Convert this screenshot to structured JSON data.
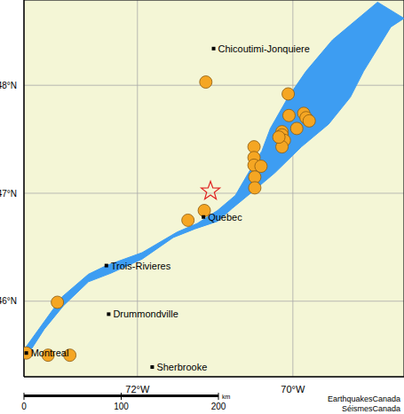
{
  "chart_data": {
    "type": "map",
    "xlim": [
      -73.46,
      -68.57
    ],
    "ylim": [
      45.3,
      48.79
    ],
    "xticks": [
      {
        "value": -72,
        "label": "72°W"
      },
      {
        "value": -70,
        "label": "70°W"
      }
    ],
    "yticks": [
      {
        "value": 46,
        "label": "46°N"
      },
      {
        "value": 47,
        "label": "47°N"
      },
      {
        "value": 48,
        "label": "48°N"
      }
    ],
    "grid": true,
    "earthquakes": {
      "color": "#f5a623",
      "marker": "circle",
      "x": [
        -71.12,
        -70.06,
        -70.05,
        -69.86,
        -69.83,
        -69.79,
        -69.95,
        -70.14,
        -70.14,
        -70.11,
        -70.14,
        -70.18,
        -70.5,
        -70.5,
        -70.5,
        -70.41,
        -70.49,
        -70.49,
        -71.14,
        -71.35,
        -73.03,
        -73.43,
        -73.15,
        -72.87
      ],
      "y": [
        48.03,
        47.92,
        47.72,
        47.74,
        47.7,
        47.67,
        47.6,
        47.57,
        47.54,
        47.49,
        47.43,
        47.52,
        47.43,
        47.33,
        47.26,
        47.25,
        47.15,
        47.05,
        46.84,
        46.75,
        45.99,
        45.52,
        45.5,
        45.5
      ]
    },
    "epicenter": {
      "color": "#e02020",
      "marker": "star",
      "x": -71.06,
      "y": 47.02
    },
    "cities": [
      {
        "label": "Chicoutimi-Jonquiere",
        "x": -71.02,
        "y": 48.34
      },
      {
        "label": "Quebec",
        "x": -71.15,
        "y": 46.78
      },
      {
        "label": "Trois-Rivieres",
        "x": -72.4,
        "y": 46.33
      },
      {
        "label": "Drummondville",
        "x": -72.37,
        "y": 45.88
      },
      {
        "label": "Sherbrooke",
        "x": -71.81,
        "y": 45.39
      },
      {
        "label": "Montreal",
        "x": -73.43,
        "y": 45.52
      }
    ],
    "water": {
      "color": "#3d9df2",
      "x": [
        -73.46,
        -73.26,
        -72.97,
        -72.63,
        -72.4,
        -71.94,
        -71.49,
        -71.23,
        -70.97,
        -70.74,
        -70.57,
        -70.4,
        -70.29,
        -70.06,
        -69.83,
        -69.49,
        -68.91,
        -68.57,
        -68.74,
        -69.09,
        -69.26,
        -69.54,
        -69.89,
        -70.23,
        -70.51,
        -70.78,
        -70.97,
        -71.26,
        -71.54,
        -71.94,
        -72.34,
        -72.63,
        -72.95,
        -73.2,
        -73.37,
        -73.46
      ],
      "y": [
        45.55,
        45.75,
        46.04,
        46.25,
        46.33,
        46.45,
        46.64,
        46.72,
        46.84,
        46.98,
        47.19,
        47.39,
        47.6,
        47.89,
        48.13,
        48.42,
        48.77,
        48.62,
        48.54,
        48.13,
        47.89,
        47.64,
        47.43,
        47.19,
        47.02,
        46.86,
        46.74,
        46.67,
        46.59,
        46.39,
        46.26,
        46.18,
        45.96,
        45.74,
        45.55,
        45.47
      ]
    },
    "scale_bar": {
      "ticks": [
        0,
        100,
        200
      ],
      "unit": "km"
    },
    "credits": [
      "EarthquakesCanada",
      "SéismesCanada"
    ]
  }
}
